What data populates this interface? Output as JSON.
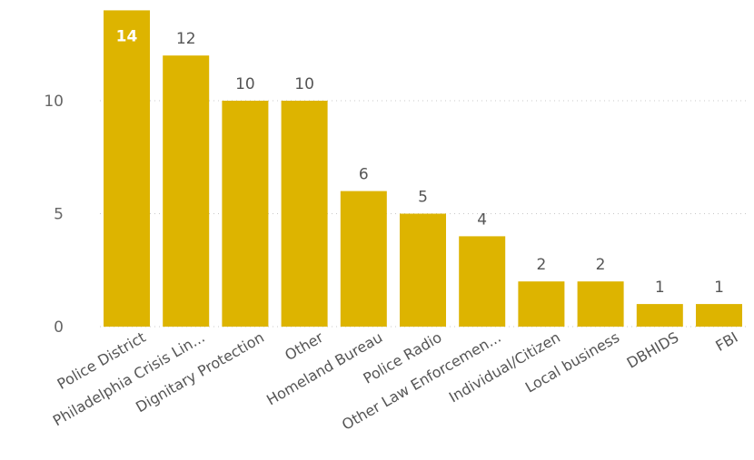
{
  "chart_data": {
    "type": "bar",
    "categories": [
      "Police District",
      "Philadelphia Crisis Lin...",
      "Dignitary Protection",
      "Other",
      "Homeland Bureau",
      "Police Radio",
      "Other Law Enforcemen...",
      "Individual/Citizen",
      "Local business",
      "DBHIDS",
      "FBI"
    ],
    "values": [
      14,
      12,
      10,
      10,
      6,
      5,
      4,
      2,
      2,
      1,
      1
    ],
    "ylim": [
      0,
      14
    ],
    "yticks": [
      0,
      5,
      10
    ],
    "grid": true,
    "data_labels": true,
    "bar_color": "#DDB400"
  }
}
